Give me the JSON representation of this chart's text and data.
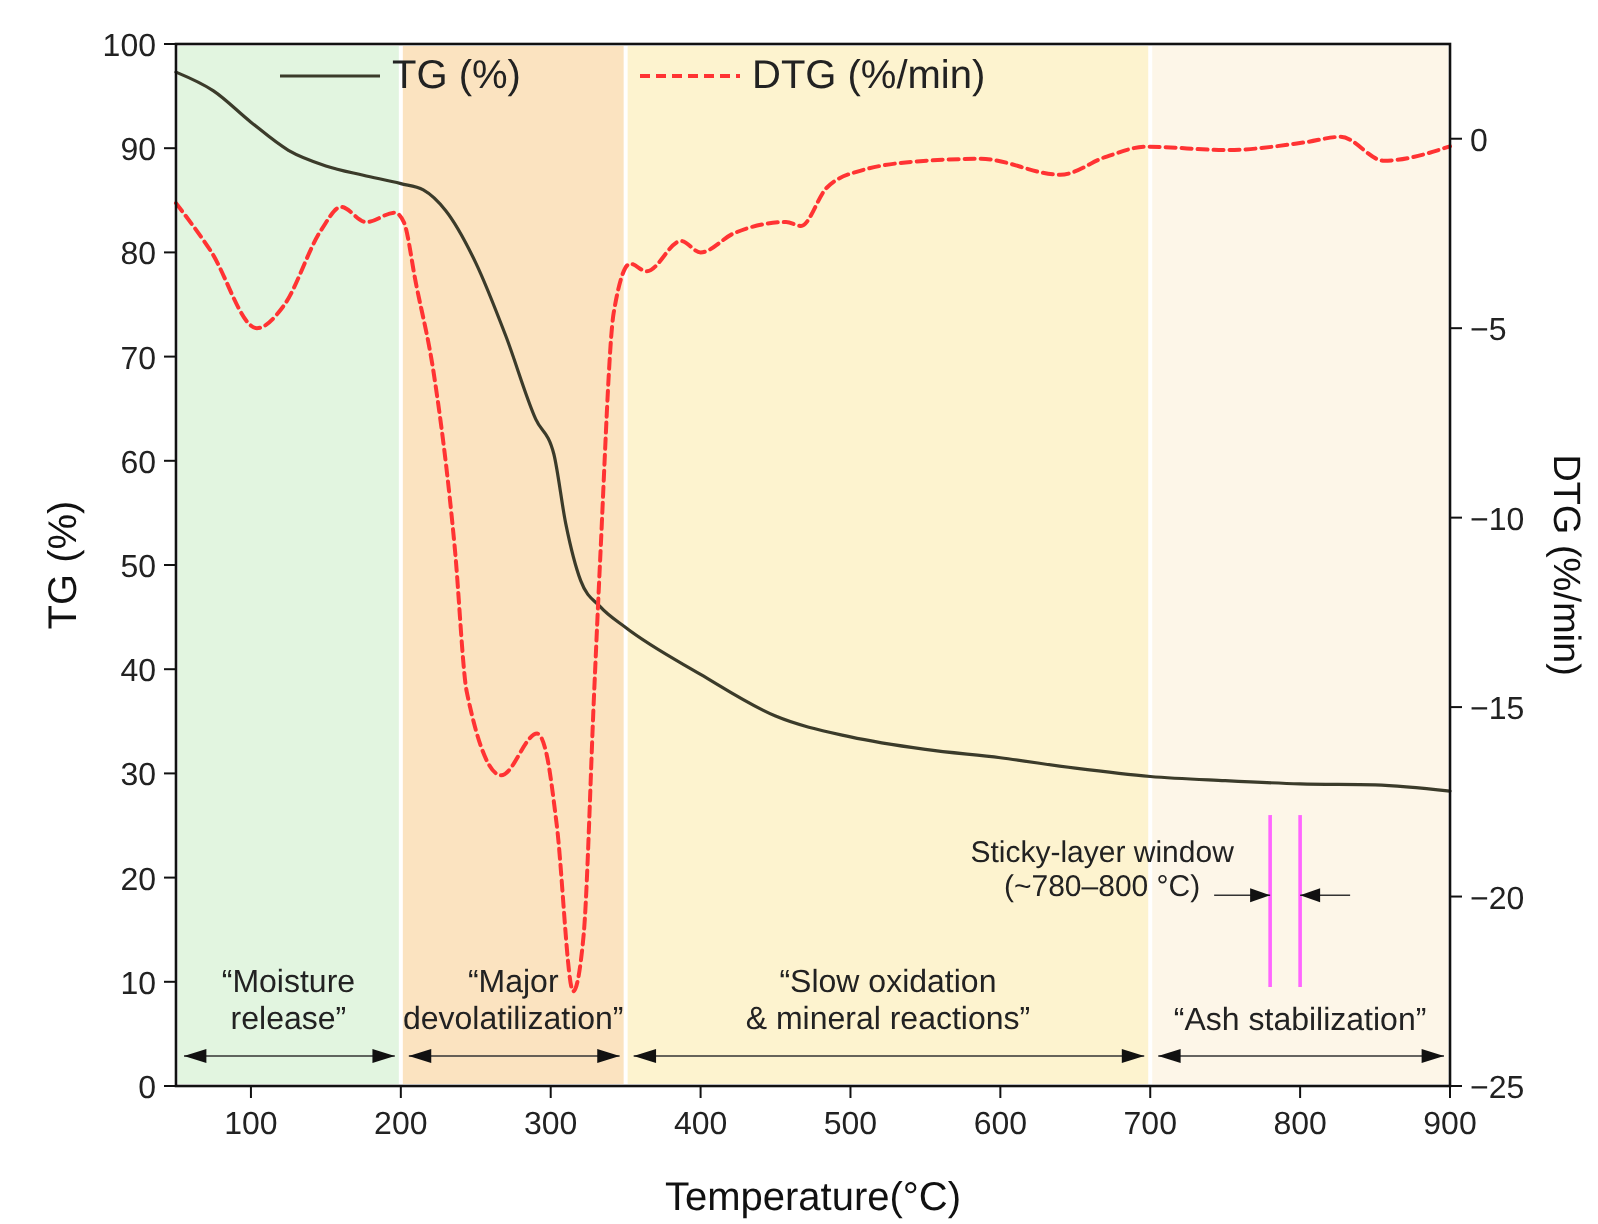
{
  "chart_data": {
    "type": "line",
    "xlabel": "Temperature(°C)",
    "ylabel": "TG (%)",
    "y2label": "DTG (%/min)",
    "xlim": [
      50,
      900
    ],
    "xticks": [
      100,
      200,
      300,
      400,
      500,
      600,
      700,
      800,
      900
    ],
    "ylim": [
      0,
      100
    ],
    "yticks": [
      0,
      10,
      20,
      30,
      40,
      50,
      60,
      70,
      80,
      90,
      100
    ],
    "y2lim": [
      -25,
      2.5
    ],
    "y2ticks": [
      -25,
      -20,
      -15,
      -10,
      -5,
      0
    ],
    "legend": "top",
    "series": [
      {
        "name": "TG (%)",
        "color": "#3b3b2a",
        "line_style": "solid",
        "x": [
          50,
          75,
          100,
          125,
          150,
          175,
          200,
          215,
          230,
          250,
          270,
          290,
          302,
          310,
          320,
          333,
          350,
          400,
          450,
          500,
          550,
          600,
          650,
          700,
          750,
          800,
          850,
          900
        ],
        "values": [
          97.3,
          95.5,
          92.5,
          89.8,
          88.3,
          87.4,
          86.6,
          86,
          84,
          79,
          72,
          64,
          60.7,
          54,
          48.5,
          46,
          44,
          39.5,
          35.5,
          33.5,
          32.3,
          31.5,
          30.5,
          29.7,
          29.3,
          29,
          28.9,
          28.3
        ]
      },
      {
        "name": "DTG (%/min)",
        "color": "#ff3333",
        "line_style": "dashed",
        "axis": "y2",
        "x": [
          50,
          73,
          104,
          122,
          147,
          160,
          177,
          196,
          202,
          210,
          222,
          236,
          244,
          267,
          291,
          297,
          304,
          315,
          322,
          329,
          333,
          342,
          353,
          364,
          387,
          400,
          422,
          457,
          467,
          484,
          507,
          551,
          587,
          640,
          671,
          697,
          751,
          804,
          827,
          856,
          900
        ],
        "values": [
          -1.7,
          -2.95,
          -5,
          -4.4,
          -2.4,
          -1.8,
          -2.2,
          -1.95,
          -2.2,
          -3.8,
          -6.2,
          -10.8,
          -14.6,
          -16.8,
          -15.7,
          -16.2,
          -18.1,
          -22.5,
          -21,
          -14.6,
          -11.1,
          -4.6,
          -3.3,
          -3.5,
          -2.7,
          -3,
          -2.5,
          -2.2,
          -2.3,
          -1.3,
          -0.84,
          -0.58,
          -0.53,
          -0.95,
          -0.47,
          -0.21,
          -0.3,
          -0.09,
          0.05,
          -0.58,
          -0.2
        ]
      }
    ],
    "bands": [
      {
        "axis": "x",
        "from": 50,
        "to": 200,
        "label": "“Moisture\nrelease”",
        "color": "#e2f5e0"
      },
      {
        "axis": "x",
        "from": 200,
        "to": 350,
        "label": "“Major\ndevolatilization”",
        "color": "#fbe3c0"
      },
      {
        "axis": "x",
        "from": 350,
        "to": 700,
        "label": "“Slow oxidation\n& mineral reactions”",
        "color": "#fdf3cf"
      },
      {
        "axis": "x",
        "from": 700,
        "to": 900,
        "label": "“Ash stabilization”",
        "color": "#fdf6e8"
      }
    ],
    "ref_lines": [
      {
        "axis": "x",
        "value": 780,
        "color": "#ff66ff"
      },
      {
        "axis": "x",
        "value": 800,
        "color": "#ff66ff"
      }
    ],
    "annotations": [
      "Sticky-layer window\n(~780–800 °C)"
    ]
  }
}
